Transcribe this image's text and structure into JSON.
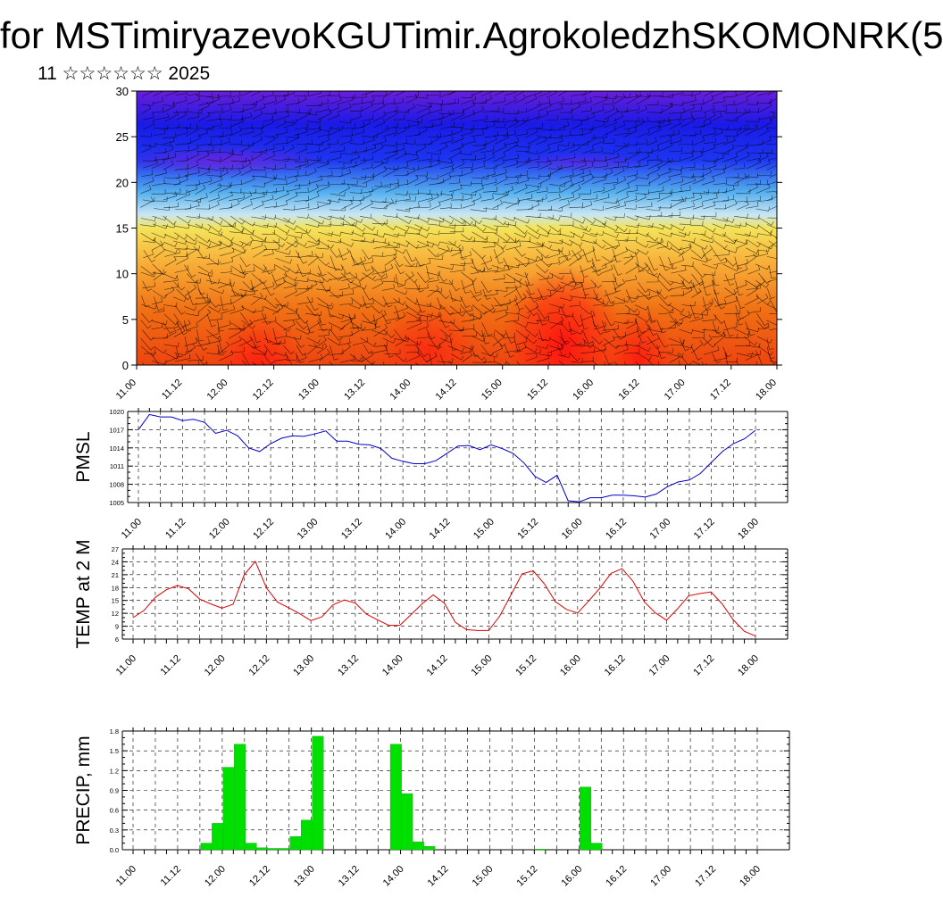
{
  "header": {
    "title": "for MSTimiryazevoKGUTimir.AgrokoledzhSKOMONRK(5",
    "subtitle": "11 ☆☆☆☆☆☆ 2025"
  },
  "time_labels": [
    "11.00",
    "11.12",
    "12.00",
    "12.12",
    "13.00",
    "13.12",
    "14.00",
    "14.12",
    "15.00",
    "15.12",
    "16.00",
    "16.12",
    "17.00",
    "17.12",
    "18.00"
  ],
  "colors": {
    "pmsl_line": "#0000cc",
    "temp_line": "#dd0000",
    "precip_bar": "#00e000",
    "grid": "#000000"
  },
  "chart_data": [
    {
      "type": "heatmap",
      "title": "",
      "xlabel": "",
      "ylabel": "",
      "ylim": [
        0,
        30
      ],
      "yticks": [
        0,
        5,
        10,
        15,
        20,
        25,
        30
      ],
      "overlay": "wind barbs",
      "palette": "blue-violet at top through blue, light blue, yellow, orange to red near the surface"
    },
    {
      "type": "line",
      "ylabel": "PMSL",
      "ylim": [
        1005,
        1020
      ],
      "yticks": [
        1005,
        1008,
        1011,
        1014,
        1017,
        1020
      ],
      "series": [
        {
          "values": [
            1017.0,
            1019.5,
            1019.1,
            1019.1,
            1018.5,
            1018.7,
            1018.2,
            1016.4,
            1016.9,
            1016.0,
            1014.0,
            1013.4,
            1014.7,
            1015.6,
            1016.0,
            1015.9,
            1016.3,
            1016.8,
            1015.1,
            1015.1,
            1014.6,
            1014.5,
            1013.9,
            1012.3,
            1011.8,
            1011.4,
            1011.4,
            1011.9,
            1013.1,
            1014.3,
            1014.4,
            1013.7,
            1014.5,
            1013.9,
            1013.1,
            1011.5,
            1009.3,
            1008.3,
            1009.5,
            1005.3,
            1005.1,
            1005.8,
            1005.8,
            1006.2,
            1006.2,
            1006.1,
            1005.9,
            1006.4,
            1007.6,
            1008.4,
            1008.7,
            1009.8,
            1011.6,
            1013.4,
            1014.7,
            1015.5,
            1016.9
          ]
        }
      ]
    },
    {
      "type": "line",
      "ylabel": "TEMP at 2 M",
      "ylim": [
        6,
        27
      ],
      "yticks": [
        6,
        9,
        12,
        15,
        18,
        21,
        24,
        27
      ],
      "series": [
        {
          "values": [
            11.0,
            12.7,
            15.7,
            17.5,
            18.5,
            17.7,
            15.3,
            14.2,
            13.2,
            14.1,
            21.0,
            24.1,
            17.9,
            14.6,
            13.3,
            11.9,
            10.3,
            11.2,
            14.0,
            15.1,
            14.4,
            11.8,
            10.5,
            9.2,
            9.2,
            11.7,
            14.2,
            16.3,
            14.4,
            9.9,
            8.2,
            8.0,
            8.0,
            11.4,
            16.3,
            21.2,
            21.9,
            18.9,
            14.7,
            12.9,
            12.1,
            14.9,
            17.9,
            21.3,
            22.4,
            19.4,
            14.7,
            12.1,
            10.4,
            13.1,
            16.1,
            16.6,
            17.0,
            14.2,
            10.5,
            7.8,
            6.7
          ]
        }
      ]
    },
    {
      "type": "bar",
      "ylabel": "PRECIP, mm",
      "ylim": [
        0,
        1.8
      ],
      "yticks": [
        "0.0",
        "0.3",
        "0.6",
        "0.9",
        "1.2",
        "1.5",
        "1.8"
      ],
      "series": [
        {
          "values": [
            0,
            0,
            0,
            0,
            0,
            0,
            0.1,
            0.4,
            1.25,
            1.6,
            0.1,
            0.03,
            0.02,
            0.02,
            0.2,
            0.45,
            1.72,
            0,
            0,
            0,
            0,
            0,
            0,
            1.6,
            0.85,
            0.12,
            0.05,
            0,
            0,
            0,
            0,
            0,
            0,
            0,
            0,
            0,
            0.01,
            0,
            0,
            0,
            0.95,
            0.1,
            0,
            0,
            0,
            0,
            0,
            0,
            0,
            0,
            0,
            0,
            0,
            0,
            0,
            0
          ]
        }
      ]
    }
  ]
}
